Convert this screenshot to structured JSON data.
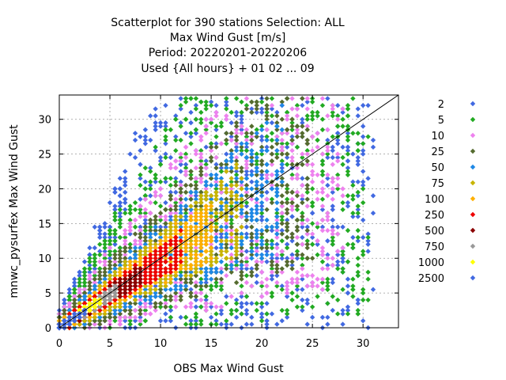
{
  "chart_data": {
    "type": "scatter",
    "title_lines": [
      "Scatterplot for  390 stations Selection: ALL",
      "Max Wind Gust [m/s]",
      "Period: 20220201-20220206",
      "Used {All hours} + 01 02 ... 09"
    ],
    "xlabel": "OBS Max Wind Gust",
    "ylabel": "mnwc_pysurfex Max Wind Gust",
    "xlim": [
      0,
      33.5
    ],
    "ylim": [
      0,
      33.5
    ],
    "x_ticks": [
      0,
      5,
      10,
      15,
      20,
      25,
      30
    ],
    "y_ticks": [
      0,
      5,
      10,
      15,
      20,
      25,
      30
    ],
    "grid": true,
    "diagonal_line": true,
    "legend_placement": "right",
    "series": [
      {
        "name": "2",
        "color": "#4169e1"
      },
      {
        "name": "5",
        "color": "#22aa22"
      },
      {
        "name": "10",
        "color": "#ee82ee"
      },
      {
        "name": "25",
        "color": "#556b2f"
      },
      {
        "name": "50",
        "color": "#1e88e5"
      },
      {
        "name": "75",
        "color": "#c8b400"
      },
      {
        "name": "100",
        "color": "#ffb000"
      },
      {
        "name": "250",
        "color": "#ee0000"
      },
      {
        "name": "500",
        "color": "#8b0000"
      },
      {
        "name": "750",
        "color": "#999999"
      },
      {
        "name": "1000",
        "color": "#ffff00"
      },
      {
        "name": "2500",
        "color": "#4169e1"
      }
    ],
    "density_bands": [
      {
        "series": "2",
        "ratio_lo": 0.05,
        "ratio_hi": 3.4,
        "x_max": 31,
        "width_min": 3.5
      },
      {
        "series": "5",
        "ratio_lo": 0.12,
        "ratio_hi": 2.6,
        "x_max": 30.5,
        "width_min": 3.0
      },
      {
        "series": "10",
        "ratio_lo": 0.25,
        "ratio_hi": 2.0,
        "x_max": 28,
        "width_min": 2.4
      },
      {
        "series": "25",
        "ratio_lo": 0.4,
        "ratio_hi": 1.65,
        "x_max": 25,
        "width_min": 2.0
      },
      {
        "series": "50",
        "ratio_lo": 0.52,
        "ratio_hi": 1.42,
        "x_max": 22,
        "width_min": 1.6
      },
      {
        "series": "75",
        "ratio_lo": 0.62,
        "ratio_hi": 1.3,
        "x_max": 18,
        "width_min": 1.2
      },
      {
        "series": "100",
        "ratio_lo": 0.7,
        "ratio_hi": 1.22,
        "x_max": 15,
        "width_min": 1.0
      },
      {
        "series": "250",
        "ratio_lo": 0.78,
        "ratio_hi": 1.12,
        "x_max": 12,
        "width_min": 0.9
      },
      {
        "series": "500",
        "ratio_lo": 0.84,
        "ratio_hi": 1.05,
        "x_max": 8,
        "width_min": 0.7
      },
      {
        "series": "750",
        "ratio_lo": 0.88,
        "ratio_hi": 1.02,
        "x_max": 5.5,
        "width_min": 0.6
      },
      {
        "series": "1000",
        "ratio_lo": 0.92,
        "ratio_hi": 0.98,
        "x_max": 4,
        "width_min": 0.4
      },
      {
        "series": "2500",
        "ratio_lo": 0.94,
        "ratio_hi": 0.96,
        "x_max": 2.5,
        "width_min": 0.3
      }
    ]
  }
}
